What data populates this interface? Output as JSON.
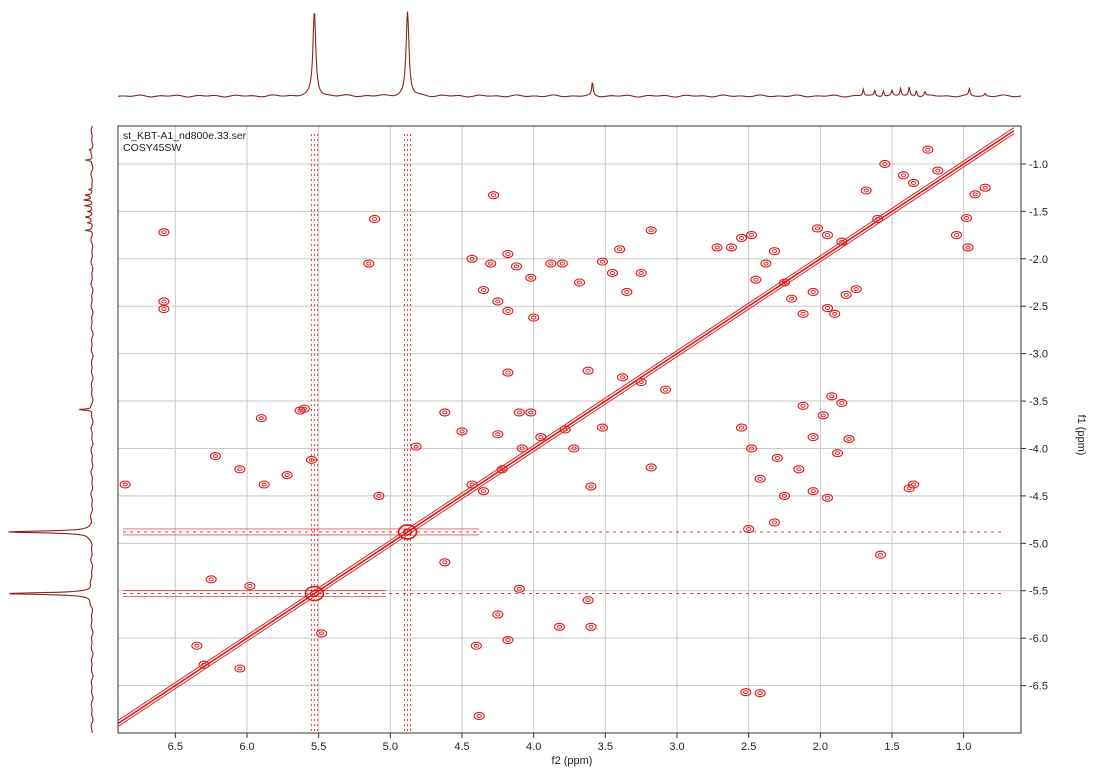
{
  "chart_data": {
    "type": "scatter",
    "plot_kind": "2D NMR COSY contour plot with 1D projections",
    "header_lines": [
      "st_KBT-A1_nd800e.33.ser",
      "COSY45SW"
    ],
    "xlabel": "f2 (ppm)",
    "ylabel": "f1 (ppm)",
    "xlim": [
      6.9,
      0.6
    ],
    "ylim": [
      0.6,
      7.0
    ],
    "x_reversed": true,
    "y_reversed": true,
    "xticks": [
      6.5,
      6.0,
      5.5,
      5.0,
      4.5,
      4.0,
      3.5,
      3.0,
      2.5,
      2.0,
      1.5,
      1.0
    ],
    "xtick_labels": [
      "6.5",
      "6.0",
      "5.5",
      "5.0",
      "4.5",
      "4.0",
      "3.5",
      "3.0",
      "2.5",
      "2.0",
      "1.5",
      "1.0"
    ],
    "yticks": [
      1.0,
      1.5,
      2.0,
      2.5,
      3.0,
      3.5,
      4.0,
      4.5,
      5.0,
      5.5,
      6.0,
      6.5
    ],
    "ytick_labels": [
      "1.0",
      "1.5",
      "2.0",
      "2.5",
      "3.0",
      "3.5",
      "4.0",
      "4.5",
      "5.0",
      "5.5",
      "6.0",
      "6.5"
    ],
    "grid": true,
    "colors": {
      "contour": "#e01818",
      "projection": "#8b2323",
      "axis": "#333333",
      "grid": "#c8c8c8"
    },
    "diagonal": {
      "from": [
        6.9,
        6.9
      ],
      "to": [
        0.65,
        0.65
      ]
    },
    "t1_noise_ridges_ppm": [
      5.53,
      4.88
    ],
    "projection_peaks_ppm": [
      {
        "ppm": 5.53,
        "intensity": 1.0
      },
      {
        "ppm": 4.88,
        "intensity": 1.0
      },
      {
        "ppm": 3.59,
        "intensity": 0.16
      },
      {
        "ppm": 1.7,
        "intensity": 0.08
      },
      {
        "ppm": 1.62,
        "intensity": 0.06
      },
      {
        "ppm": 1.56,
        "intensity": 0.07
      },
      {
        "ppm": 1.5,
        "intensity": 0.06
      },
      {
        "ppm": 1.44,
        "intensity": 0.09
      },
      {
        "ppm": 1.38,
        "intensity": 0.1
      },
      {
        "ppm": 1.33,
        "intensity": 0.07
      },
      {
        "ppm": 1.27,
        "intensity": 0.05
      },
      {
        "ppm": 0.96,
        "intensity": 0.08
      },
      {
        "ppm": 0.85,
        "intensity": 0.03
      }
    ],
    "cross_peaks": [
      [
        6.58,
        2.45
      ],
      [
        6.58,
        2.53
      ],
      [
        6.58,
        1.72
      ],
      [
        5.9,
        3.68
      ],
      [
        5.63,
        3.6
      ],
      [
        5.6,
        3.58
      ],
      [
        5.11,
        1.58
      ],
      [
        5.15,
        2.05
      ],
      [
        4.28,
        1.33
      ],
      [
        4.43,
        2.0
      ],
      [
        4.3,
        2.05
      ],
      [
        4.25,
        2.45
      ],
      [
        4.12,
        2.08
      ],
      [
        4.02,
        2.2
      ],
      [
        3.88,
        2.05
      ],
      [
        3.8,
        2.05
      ],
      [
        3.68,
        2.25
      ],
      [
        3.52,
        2.03
      ],
      [
        3.45,
        2.15
      ],
      [
        3.4,
        1.9
      ],
      [
        3.35,
        2.35
      ],
      [
        3.18,
        1.7
      ],
      [
        3.25,
        2.15
      ],
      [
        4.18,
        2.55
      ],
      [
        4.0,
        2.62
      ],
      [
        4.35,
        2.33
      ],
      [
        4.18,
        1.95
      ],
      [
        2.72,
        1.88
      ],
      [
        2.62,
        1.88
      ],
      [
        2.55,
        1.78
      ],
      [
        2.48,
        1.75
      ],
      [
        2.45,
        2.22
      ],
      [
        2.38,
        2.05
      ],
      [
        2.32,
        1.92
      ],
      [
        2.25,
        2.25
      ],
      [
        2.2,
        2.42
      ],
      [
        2.12,
        2.58
      ],
      [
        2.05,
        2.35
      ],
      [
        1.95,
        2.52
      ],
      [
        1.9,
        2.58
      ],
      [
        1.82,
        2.38
      ],
      [
        1.75,
        2.32
      ],
      [
        2.02,
        1.68
      ],
      [
        1.95,
        1.75
      ],
      [
        1.85,
        1.82
      ],
      [
        1.68,
        1.28
      ],
      [
        1.6,
        1.58
      ],
      [
        1.55,
        1.0
      ],
      [
        1.42,
        1.12
      ],
      [
        1.35,
        1.2
      ],
      [
        1.25,
        0.85
      ],
      [
        1.18,
        1.07
      ],
      [
        0.98,
        1.57
      ],
      [
        0.92,
        1.32
      ],
      [
        0.85,
        1.25
      ],
      [
        1.05,
        1.75
      ],
      [
        0.97,
        1.88
      ],
      [
        4.18,
        3.2
      ],
      [
        3.62,
        3.18
      ],
      [
        3.38,
        3.25
      ],
      [
        3.25,
        3.3
      ],
      [
        3.08,
        3.38
      ],
      [
        4.1,
        3.62
      ],
      [
        4.02,
        3.62
      ],
      [
        3.95,
        3.88
      ],
      [
        3.78,
        3.8
      ],
      [
        3.52,
        3.78
      ],
      [
        4.25,
        3.85
      ],
      [
        4.62,
        3.62
      ],
      [
        4.5,
        3.82
      ],
      [
        4.43,
        4.38
      ],
      [
        4.35,
        4.45
      ],
      [
        4.22,
        4.22
      ],
      [
        4.08,
        4.0
      ],
      [
        3.72,
        4.0
      ],
      [
        3.6,
        4.4
      ],
      [
        3.18,
        4.2
      ],
      [
        4.82,
        3.98
      ],
      [
        5.08,
        4.5
      ],
      [
        5.55,
        4.12
      ],
      [
        5.72,
        4.28
      ],
      [
        5.88,
        4.38
      ],
      [
        6.05,
        4.22
      ],
      [
        6.22,
        4.08
      ],
      [
        6.85,
        4.38
      ],
      [
        2.55,
        3.78
      ],
      [
        2.48,
        4.0
      ],
      [
        2.42,
        4.32
      ],
      [
        2.3,
        4.1
      ],
      [
        2.25,
        4.5
      ],
      [
        2.15,
        4.22
      ],
      [
        2.05,
        4.45
      ],
      [
        1.95,
        4.52
      ],
      [
        1.88,
        4.05
      ],
      [
        1.8,
        3.9
      ],
      [
        2.05,
        3.88
      ],
      [
        1.98,
        3.65
      ],
      [
        1.92,
        3.45
      ],
      [
        1.85,
        3.52
      ],
      [
        2.12,
        3.55
      ],
      [
        1.35,
        4.38
      ],
      [
        1.38,
        4.42
      ],
      [
        1.58,
        5.12
      ],
      [
        2.5,
        4.85
      ],
      [
        2.32,
        4.78
      ],
      [
        4.62,
        5.2
      ],
      [
        4.1,
        5.48
      ],
      [
        4.25,
        5.75
      ],
      [
        3.82,
        5.88
      ],
      [
        3.62,
        5.6
      ],
      [
        3.6,
        5.88
      ],
      [
        5.98,
        5.45
      ],
      [
        6.25,
        5.38
      ],
      [
        6.35,
        6.08
      ],
      [
        6.3,
        6.28
      ],
      [
        6.05,
        6.32
      ],
      [
        5.48,
        5.95
      ],
      [
        4.4,
        6.08
      ],
      [
        4.18,
        6.02
      ],
      [
        2.52,
        6.57
      ],
      [
        2.42,
        6.58
      ],
      [
        4.38,
        6.82
      ]
    ]
  }
}
